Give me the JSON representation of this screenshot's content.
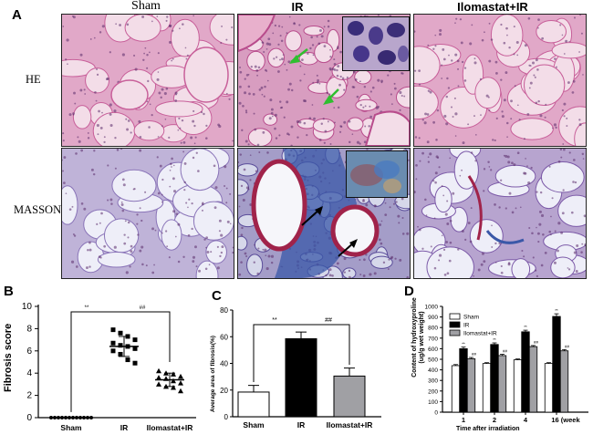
{
  "panel_a": {
    "letter": "A",
    "columns": [
      "Sham",
      "IR",
      "Ilomastat+IR"
    ],
    "rows": [
      "HE",
      "MASSON"
    ]
  },
  "panel_b": {
    "letter": "B",
    "ylabel": "Fibrosis score",
    "sig_left": "**",
    "sig_right": "##"
  },
  "panel_c": {
    "letter": "C",
    "ylabel": "Average area of fibrosis(%)",
    "sig_left": "**",
    "sig_right": "##"
  },
  "panel_d": {
    "letter": "D",
    "ylabel_line1": "Content of hydroxyproline",
    "ylabel_line2": "(ug/g wet weight)",
    "xlabel": "Time after irradiation"
  },
  "colors": {
    "he_bg": "#f3dde8",
    "he_tissue": "#c8609a",
    "masson_bg": "#eeeef8",
    "masson_tissue": "#8a74b8",
    "collagen_blue": "#3a58a8",
    "arrow_green": "#2fbf2f"
  },
  "chart_data": [
    {
      "type": "scatter",
      "panel": "B",
      "categories": [
        "Sham",
        "IR",
        "Ilomastat+IR"
      ],
      "ylabel": "Fibrosis score",
      "ylim": [
        0,
        10
      ],
      "yticks": [
        0,
        2,
        4,
        6,
        8,
        10
      ],
      "series": [
        {
          "values": [
            0,
            0,
            0,
            0,
            0,
            0,
            0,
            0,
            0,
            0,
            0,
            0
          ]
        },
        {
          "values": [
            7.9,
            7.6,
            7.3,
            7.0,
            6.7,
            6.5,
            6.4,
            6.2,
            6.0,
            5.7,
            5.2,
            4.9
          ]
        },
        {
          "values": [
            4.2,
            4.0,
            3.9,
            3.7,
            3.6,
            3.5,
            3.3,
            3.1,
            3.0,
            2.8,
            2.7,
            2.4
          ]
        }
      ],
      "means": [
        0,
        6.4,
        3.4
      ],
      "sd": [
        0,
        0.9,
        0.6
      ]
    },
    {
      "type": "bar",
      "panel": "C",
      "categories": [
        "Sham",
        "IR",
        "Ilomastat+IR"
      ],
      "ylabel": "Average area of fibrosis(%)",
      "values": [
        18.5,
        58.5,
        30.5
      ],
      "errors": [
        5,
        5,
        6
      ],
      "ylim": [
        0,
        80
      ],
      "yticks": [
        0,
        20,
        40,
        60,
        80
      ]
    },
    {
      "type": "bar",
      "panel": "D",
      "categories": [
        "1",
        "2",
        "4",
        "16 (week"
      ],
      "xlabel": "Time after irradiation",
      "ylabel": "Content of hydroxyproline (ug/g wet weight)",
      "ylim": [
        0,
        1000
      ],
      "yticks": [
        0,
        100,
        200,
        300,
        400,
        500,
        600,
        700,
        800,
        900,
        1000
      ],
      "series": [
        {
          "name": "Sham",
          "values": [
            440,
            460,
            495,
            460
          ],
          "errors": [
            10,
            8,
            8,
            8
          ]
        },
        {
          "name": "IR",
          "values": [
            600,
            640,
            760,
            905
          ],
          "errors": [
            15,
            15,
            15,
            25
          ],
          "labels": [
            "**",
            "**",
            "**",
            "**"
          ]
        },
        {
          "name": "Ilomastat+IR",
          "values": [
            505,
            535,
            620,
            580
          ],
          "errors": [
            12,
            12,
            10,
            12
          ],
          "labels": [
            "##",
            "##",
            "##",
            "##"
          ]
        }
      ],
      "legend": "top-left"
    }
  ]
}
